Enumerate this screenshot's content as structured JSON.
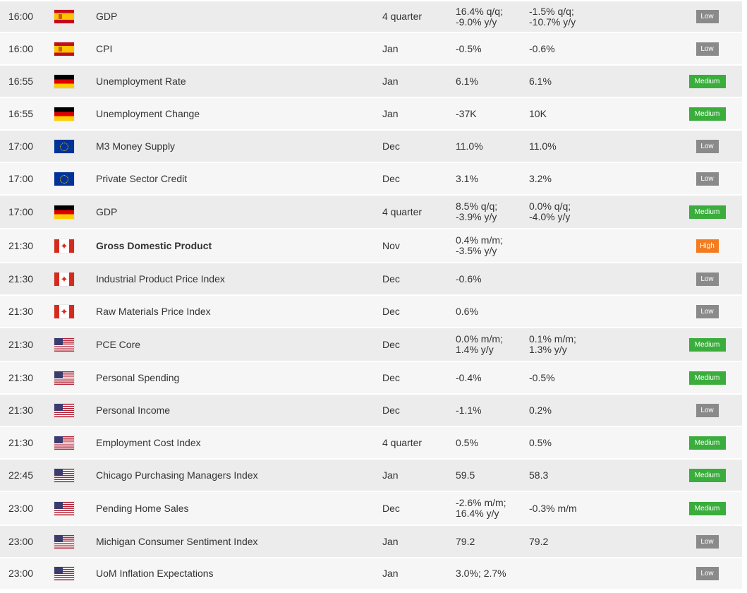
{
  "calendar": {
    "colors": {
      "low": "#8a8a8a",
      "medium": "#3aad3c",
      "high": "#f47c1f",
      "row_odd": "#ececec",
      "row_even": "#f6f6f6"
    },
    "rows": [
      {
        "time": "16:00",
        "flag": "spain-flag-icon",
        "event": "GDP",
        "period": "4 quarter",
        "forecast": [
          "16.4% q/q;",
          "-9.0% y/y"
        ],
        "previous": [
          "-1.5% q/q;",
          "-10.7% y/y"
        ],
        "importance": "Low"
      },
      {
        "time": "16:00",
        "flag": "spain-flag-icon",
        "event": "CPI",
        "period": "Jan",
        "forecast": [
          "-0.5%"
        ],
        "previous": [
          "-0.6%"
        ],
        "importance": "Low"
      },
      {
        "time": "16:55",
        "flag": "germany-flag-icon",
        "event": "Unemployment Rate",
        "period": "Jan",
        "forecast": [
          "6.1%"
        ],
        "previous": [
          "6.1%"
        ],
        "importance": "Medium"
      },
      {
        "time": "16:55",
        "flag": "germany-flag-icon",
        "event": "Unemployment Change",
        "period": "Jan",
        "forecast": [
          "-37K"
        ],
        "previous": [
          "10K"
        ],
        "importance": "Medium"
      },
      {
        "time": "17:00",
        "flag": "eu-flag-icon",
        "event": "M3 Money Supply",
        "period": "Dec",
        "forecast": [
          "11.0%"
        ],
        "previous": [
          "11.0%"
        ],
        "importance": "Low"
      },
      {
        "time": "17:00",
        "flag": "eu-flag-icon",
        "event": "Private Sector Credit",
        "period": "Dec",
        "forecast": [
          "3.1%"
        ],
        "previous": [
          "3.2%"
        ],
        "importance": "Low"
      },
      {
        "time": "17:00",
        "flag": "germany-flag-icon",
        "event": "GDP",
        "period": "4 quarter",
        "forecast": [
          "8.5% q/q;",
          "-3.9% y/y"
        ],
        "previous": [
          "0.0% q/q;",
          "-4.0% y/y"
        ],
        "importance": "Medium"
      },
      {
        "time": "21:30",
        "flag": "canada-flag-icon",
        "event": "Gross Domestic Product",
        "period": "Nov",
        "forecast": [
          "0.4% m/m;",
          "-3.5% y/y"
        ],
        "previous": [],
        "importance": "High"
      },
      {
        "time": "21:30",
        "flag": "canada-flag-icon",
        "event": "Industrial Product Price Index",
        "period": "Dec",
        "forecast": [
          "-0.6%"
        ],
        "previous": [],
        "importance": "Low"
      },
      {
        "time": "21:30",
        "flag": "canada-flag-icon",
        "event": "Raw Materials Price Index",
        "period": "Dec",
        "forecast": [
          "0.6%"
        ],
        "previous": [],
        "importance": "Low"
      },
      {
        "time": "21:30",
        "flag": "usa-flag-icon",
        "event": "PCE Core",
        "period": "Dec",
        "forecast": [
          "0.0% m/m;",
          "1.4% y/y"
        ],
        "previous": [
          "0.1% m/m;",
          "1.3% y/y"
        ],
        "importance": "Medium"
      },
      {
        "time": "21:30",
        "flag": "usa-flag-icon",
        "event": "Personal Spending",
        "period": "Dec",
        "forecast": [
          "-0.4%"
        ],
        "previous": [
          "-0.5%"
        ],
        "importance": "Medium"
      },
      {
        "time": "21:30",
        "flag": "usa-flag-icon",
        "event": "Personal Income",
        "period": "Dec",
        "forecast": [
          "-1.1%"
        ],
        "previous": [
          "0.2%"
        ],
        "importance": "Low"
      },
      {
        "time": "21:30",
        "flag": "usa-flag-icon",
        "event": "Employment Cost Index",
        "period": "4 quarter",
        "forecast": [
          "0.5%"
        ],
        "previous": [
          "0.5%"
        ],
        "importance": "Medium"
      },
      {
        "time": "22:45",
        "flag": "usa-flag-icon",
        "event": "Chicago Purchasing Managers Index",
        "period": "Jan",
        "forecast": [
          "59.5"
        ],
        "previous": [
          "58.3"
        ],
        "importance": "Medium"
      },
      {
        "time": "23:00",
        "flag": "usa-flag-icon",
        "event": "Pending Home Sales",
        "period": "Dec",
        "forecast": [
          "-2.6% m/m;",
          "16.4% y/y"
        ],
        "previous": [
          "-0.3% m/m"
        ],
        "importance": "Medium"
      },
      {
        "time": "23:00",
        "flag": "usa-flag-icon",
        "event": "Michigan Consumer Sentiment Index",
        "period": "Jan",
        "forecast": [
          "79.2"
        ],
        "previous": [
          "79.2"
        ],
        "importance": "Low"
      },
      {
        "time": "23:00",
        "flag": "usa-flag-icon",
        "event": "UoM Inflation Expectations",
        "period": "Jan",
        "forecast": [
          "3.0%; 2.7%"
        ],
        "previous": [],
        "importance": "Low"
      }
    ]
  }
}
